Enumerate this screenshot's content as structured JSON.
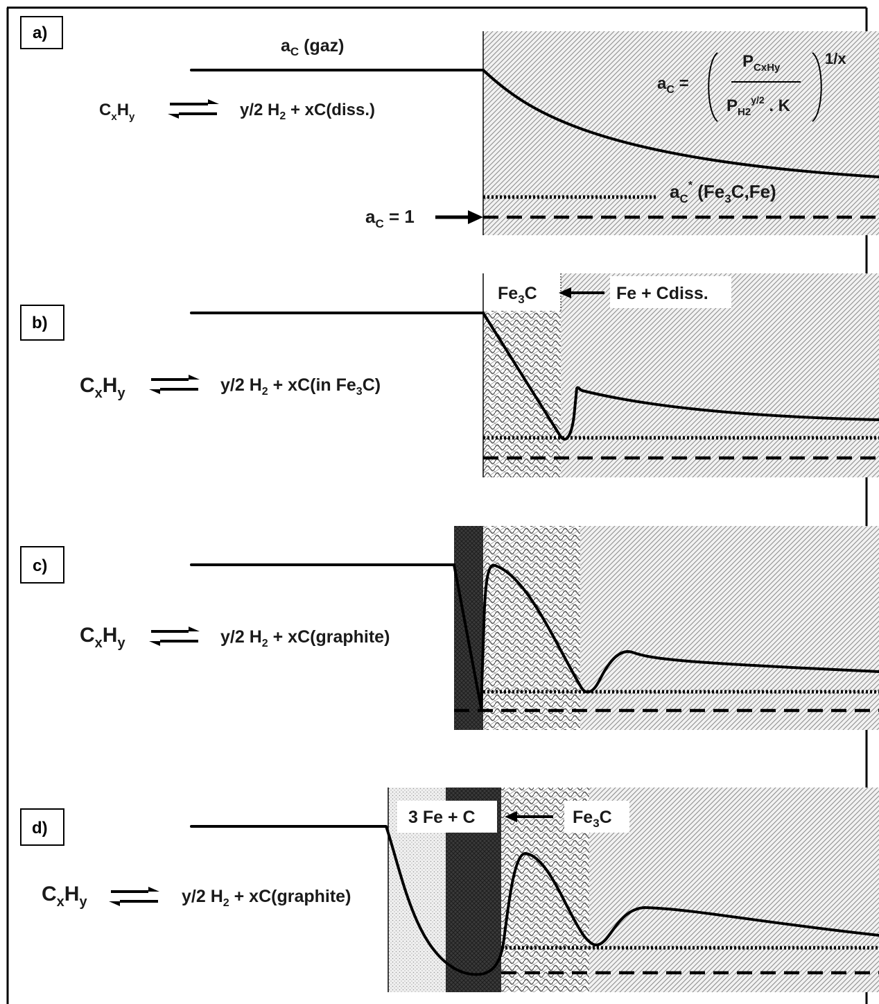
{
  "panels": {
    "a": {
      "label": "a)",
      "gas_activity_label": "a",
      "gas_activity_sub": "C",
      "gas_activity_suffix": " (gaz)",
      "reaction": {
        "reactant": "C",
        "reactant_sub1": "x",
        "reactant_h": "H",
        "reactant_sub2": "y",
        "products": "y/2 H",
        "products_sub": "2",
        "products_tail": " + xC(diss.)"
      },
      "formula": {
        "lhs": "a",
        "lhs_sub": "C",
        "eq": " =",
        "num": "P",
        "num_sub": "CxHy",
        "den": "P",
        "den_sub": "H2",
        "den_sup": "y/2",
        "den_tail": " . K",
        "exponent": "1/x"
      },
      "acprime_label": "a",
      "acprime_sub": "C",
      "acprime_sup": "*",
      "acprime_tail": " (Fe",
      "acprime_sub2": "3",
      "acprime_tail2": "C,Fe)",
      "ac1_label": "a",
      "ac1_sub": "C",
      "ac1_tail": " = 1"
    },
    "b": {
      "label": "b)",
      "reaction": {
        "reactant": "C",
        "reactant_sub1": "x",
        "reactant_h": "H",
        "reactant_sub2": "y",
        "products": "y/2 H",
        "products_sub": "2",
        "products_tail": " + xC(in Fe",
        "products_sub2": "3",
        "products_tail2": "C)"
      },
      "layer_label": "Fe",
      "layer_sub": "3",
      "layer_tail": "C",
      "front_label": "Fe + Cdiss."
    },
    "c": {
      "label": "c)",
      "reaction": {
        "reactant": "C",
        "reactant_sub1": "x",
        "reactant_h": "H",
        "reactant_sub2": "y",
        "products": "y/2 H",
        "products_sub": "2",
        "products_tail": " + xC(graphite)"
      }
    },
    "d": {
      "label": "d)",
      "reaction": {
        "reactant": "C",
        "reactant_sub1": "x",
        "reactant_h": "H",
        "reactant_sub2": "y",
        "products": "y/2 H",
        "products_sub": "2",
        "products_tail": " + xC(graphite)"
      },
      "layer1_label": "3 Fe + C",
      "layer2_label": "Fe",
      "layer2_sub": "3",
      "layer2_tail": "C"
    }
  },
  "colors": {
    "ink": "#000000",
    "diagonal_hatch": "#8a8a8a",
    "crosshatch": "#4a4a4a",
    "dark_layer": "#3a3a3a",
    "dots": "#9a9a9a"
  }
}
